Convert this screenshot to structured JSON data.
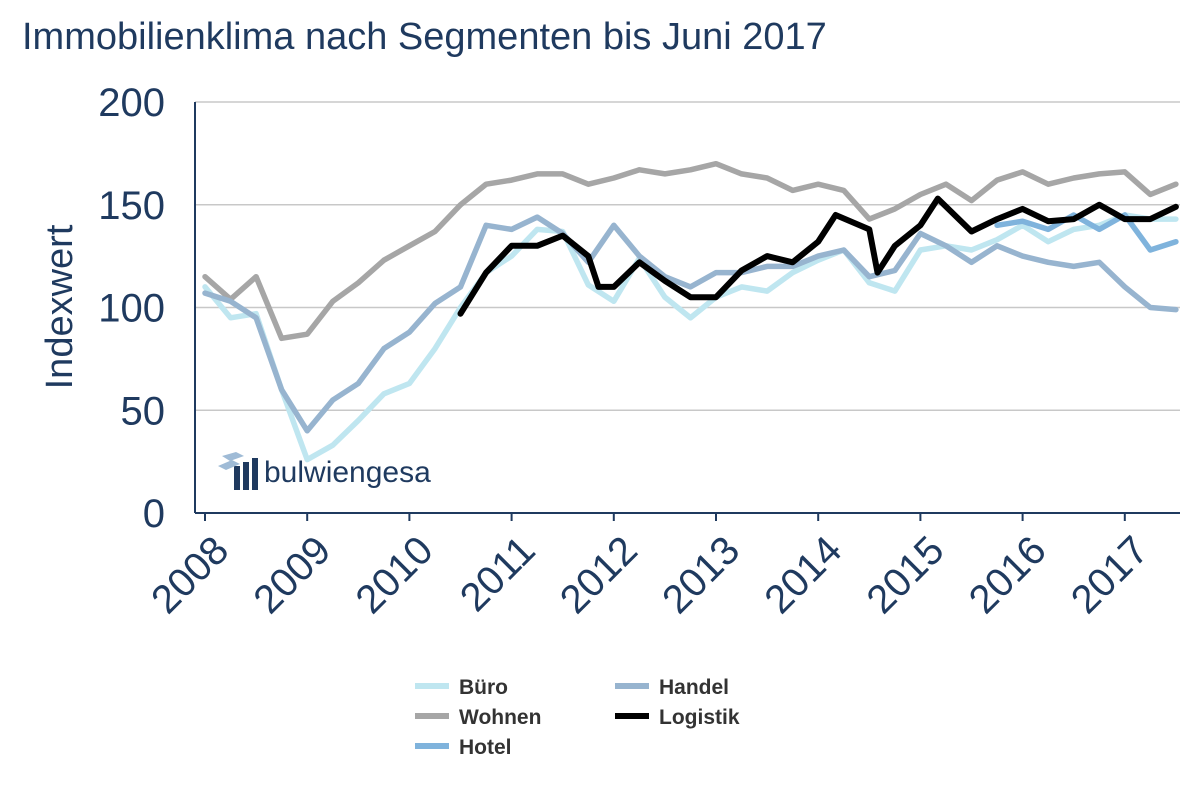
{
  "title": "Immobilienklima nach Segmenten bis Juni 2017",
  "logo_text": "bulwiengesa",
  "chart_data": {
    "type": "line",
    "title": "Immobilienklima nach Segmenten bis Juni 2017",
    "xlabel": "",
    "ylabel": "Indexwert",
    "xlim": [
      2008,
      2017.5
    ],
    "ylim": [
      0,
      200
    ],
    "x_ticks": [
      "2008",
      "2009",
      "2010",
      "2011",
      "2012",
      "2013",
      "2014",
      "2015",
      "2016",
      "2017"
    ],
    "y_ticks": [
      "0",
      "50",
      "100",
      "150",
      "200"
    ],
    "grid": "horizontal",
    "legend_position": "bottom",
    "series": [
      {
        "name": "Büro",
        "color": "#bfe6f0",
        "x": [
          2008.0,
          2008.25,
          2008.5,
          2008.75,
          2009.0,
          2009.25,
          2009.5,
          2009.75,
          2010.0,
          2010.25,
          2010.5,
          2010.75,
          2011.0,
          2011.25,
          2011.5,
          2011.75,
          2012.0,
          2012.25,
          2012.5,
          2012.75,
          2013.0,
          2013.25,
          2013.5,
          2013.75,
          2014.0,
          2014.25,
          2014.5,
          2014.75,
          2015.0,
          2015.25,
          2015.5,
          2015.75,
          2016.0,
          2016.25,
          2016.5,
          2016.75,
          2017.0,
          2017.25,
          2017.5
        ],
        "values": [
          110,
          95,
          97,
          60,
          26,
          33,
          45,
          58,
          63,
          80,
          100,
          117,
          125,
          138,
          137,
          111,
          103,
          124,
          105,
          95,
          105,
          110,
          108,
          117,
          123,
          128,
          112,
          108,
          128,
          130,
          128,
          133,
          140,
          132,
          138,
          140,
          145,
          143,
          143
        ]
      },
      {
        "name": "Wohnen",
        "color": "#a6a6a6",
        "x": [
          2008.0,
          2008.25,
          2008.5,
          2008.75,
          2009.0,
          2009.25,
          2009.5,
          2009.75,
          2010.0,
          2010.25,
          2010.5,
          2010.75,
          2011.0,
          2011.25,
          2011.5,
          2011.75,
          2012.0,
          2012.25,
          2012.5,
          2012.75,
          2013.0,
          2013.25,
          2013.5,
          2013.75,
          2014.0,
          2014.25,
          2014.5,
          2014.75,
          2015.0,
          2015.25,
          2015.5,
          2015.75,
          2016.0,
          2016.25,
          2016.5,
          2016.75,
          2017.0,
          2017.25,
          2017.5
        ],
        "values": [
          115,
          104,
          115,
          85,
          87,
          103,
          112,
          123,
          130,
          137,
          150,
          160,
          162,
          165,
          165,
          160,
          163,
          167,
          165,
          167,
          170,
          165,
          163,
          157,
          160,
          157,
          143,
          148,
          155,
          160,
          152,
          162,
          166,
          160,
          163,
          165,
          166,
          155,
          160
        ]
      },
      {
        "name": "Hotel",
        "color": "#7fb3dc",
        "x": [
          2015.75,
          2016.0,
          2016.25,
          2016.5,
          2016.75,
          2017.0,
          2017.25,
          2017.5
        ],
        "values": [
          140,
          142,
          138,
          145,
          138,
          145,
          128,
          132
        ]
      },
      {
        "name": "Handel",
        "color": "#97b4cf",
        "x": [
          2008.0,
          2008.25,
          2008.5,
          2008.75,
          2009.0,
          2009.25,
          2009.5,
          2009.75,
          2010.0,
          2010.25,
          2010.5,
          2010.75,
          2011.0,
          2011.25,
          2011.5,
          2011.75,
          2012.0,
          2012.25,
          2012.5,
          2012.75,
          2013.0,
          2013.25,
          2013.5,
          2013.75,
          2014.0,
          2014.25,
          2014.5,
          2014.75,
          2015.0,
          2015.25,
          2015.5,
          2015.75,
          2016.0,
          2016.25,
          2016.5,
          2016.75,
          2017.0,
          2017.25,
          2017.5
        ],
        "values": [
          107,
          103,
          95,
          60,
          40,
          55,
          63,
          80,
          88,
          102,
          110,
          140,
          138,
          144,
          136,
          122,
          140,
          125,
          115,
          110,
          117,
          117,
          120,
          120,
          125,
          128,
          115,
          118,
          136,
          130,
          122,
          130,
          125,
          122,
          120,
          122,
          110,
          100,
          99
        ]
      },
      {
        "name": "Logistik",
        "color": "#000000",
        "x": [
          2010.5,
          2010.75,
          2011.0,
          2011.25,
          2011.5,
          2011.75,
          2011.85,
          2012.0,
          2012.25,
          2012.5,
          2012.75,
          2013.0,
          2013.25,
          2013.5,
          2013.75,
          2014.0,
          2014.17,
          2014.5,
          2014.58,
          2014.75,
          2015.0,
          2015.17,
          2015.5,
          2015.75,
          2016.0,
          2016.25,
          2016.5,
          2016.75,
          2017.0,
          2017.25,
          2017.5
        ],
        "values": [
          97,
          117,
          130,
          130,
          135,
          125,
          110,
          110,
          122,
          113,
          105,
          105,
          118,
          125,
          122,
          132,
          145,
          138,
          117,
          130,
          140,
          153,
          137,
          143,
          148,
          142,
          143,
          150,
          143,
          143,
          149
        ]
      }
    ]
  }
}
